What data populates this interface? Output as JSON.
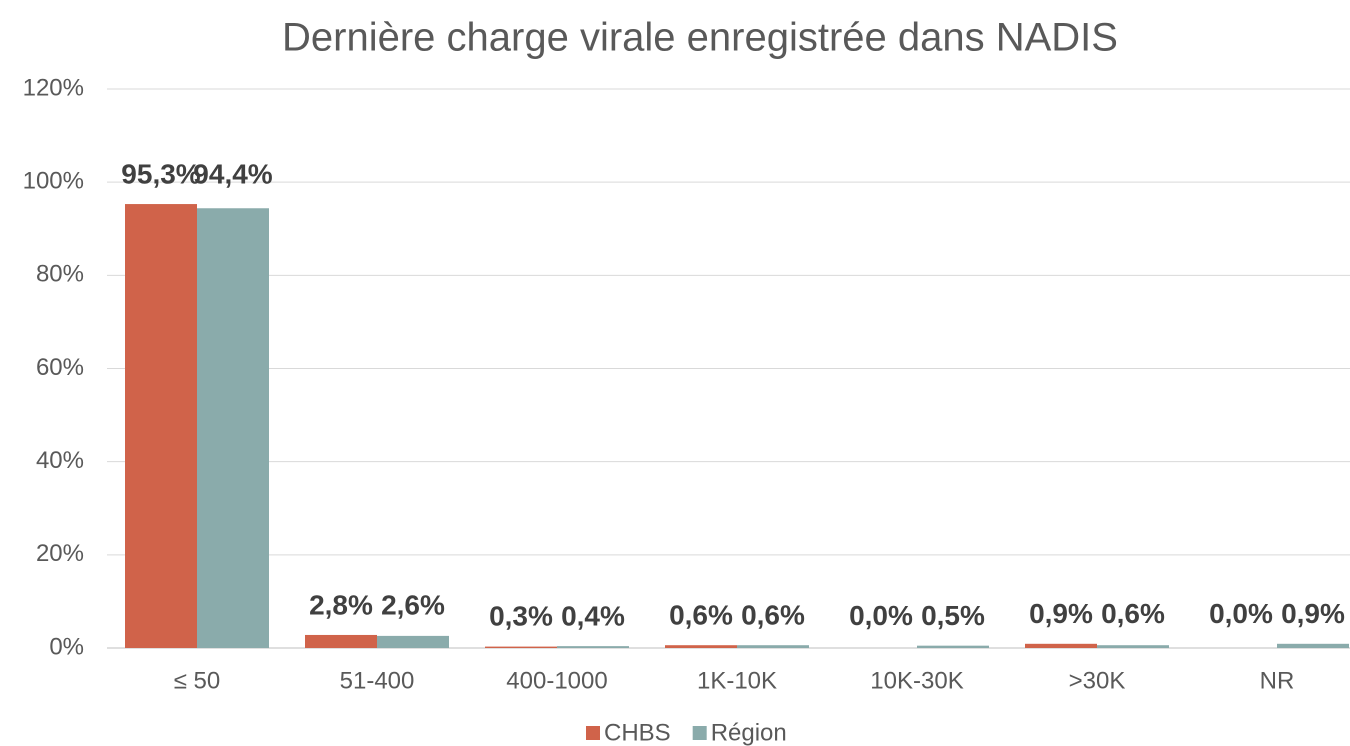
{
  "chart_data": {
    "type": "bar",
    "title": "Dernière charge virale enregistrée dans NADIS",
    "categories": [
      "≤ 50",
      "51-400",
      "400-1000",
      "1K-10K",
      "10K-30K",
      ">30K",
      "NR"
    ],
    "series": [
      {
        "name": "CHBS",
        "color": "#d0634a",
        "values": [
          95.3,
          2.8,
          0.3,
          0.6,
          0.0,
          0.9,
          0.0
        ],
        "value_labels": [
          "95,3%",
          "2,8%",
          "0,3%",
          "0,6%",
          "0,0%",
          "0,9%",
          "0,0%"
        ]
      },
      {
        "name": "Région",
        "color": "#8aabab",
        "values": [
          94.4,
          2.6,
          0.4,
          0.6,
          0.5,
          0.6,
          0.9
        ],
        "value_labels": [
          "94,4%",
          "2,6%",
          "0,4%",
          "0,6%",
          "0,5%",
          "0,6%",
          "0,9%"
        ]
      }
    ],
    "ylim": [
      0,
      120
    ],
    "yticks": [
      {
        "value": 0,
        "label": "0%"
      },
      {
        "value": 20,
        "label": "20%"
      },
      {
        "value": 40,
        "label": "40%"
      },
      {
        "value": 60,
        "label": "60%"
      },
      {
        "value": 80,
        "label": "80%"
      },
      {
        "value": 100,
        "label": "100%"
      },
      {
        "value": 120,
        "label": "120%"
      }
    ],
    "grid": true,
    "legend": "bottom"
  }
}
